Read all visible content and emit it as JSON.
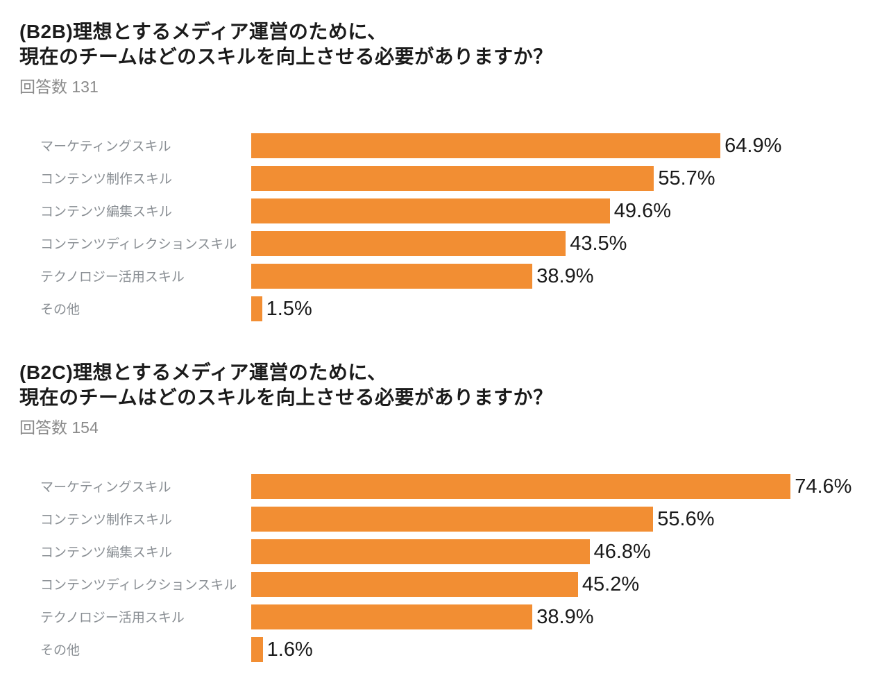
{
  "page": {
    "background": "#ffffff"
  },
  "chart_data": [
    {
      "type": "bar",
      "orientation": "horizontal",
      "title_line1": "(B2B)理想とするメディア運営のために、",
      "title_line2": "現在のチームはどのスキルを向上させる必要がありますか？",
      "responses_label": "回答数",
      "responses_count": "131",
      "categories": [
        "マーケティングスキル",
        "コンテンツ制作スキル",
        "コンテンツ編集スキル",
        "コンテンツディレクションスキル",
        "テクノロジー活用スキル",
        "その他"
      ],
      "values": [
        64.9,
        55.7,
        49.6,
        43.5,
        38.9,
        1.5
      ],
      "value_labels": [
        "64.9%",
        "55.7%",
        "49.6%",
        "43.5%",
        "38.9%",
        "1.5%"
      ],
      "bar_color": "#F28E33",
      "label_color": "#8a8f94",
      "value_color": "#1a1a1a",
      "xlim": [
        0,
        86
      ],
      "grid": false,
      "legend": "none"
    },
    {
      "type": "bar",
      "orientation": "horizontal",
      "title_line1": "(B2C)理想とするメディア運営のために、",
      "title_line2": "現在のチームはどのスキルを向上させる必要がありますか？",
      "responses_label": "回答数",
      "responses_count": "154",
      "categories": [
        "マーケティングスキル",
        "コンテンツ制作スキル",
        "コンテンツ編集スキル",
        "コンテンツディレクションスキル",
        "テクノロジー活用スキル",
        "その他"
      ],
      "values": [
        74.6,
        55.6,
        46.8,
        45.2,
        38.9,
        1.6
      ],
      "value_labels": [
        "74.6%",
        "55.6%",
        "46.8%",
        "45.2%",
        "38.9%",
        "1.6%"
      ],
      "bar_color": "#F28E33",
      "label_color": "#8a8f94",
      "value_color": "#1a1a1a",
      "xlim": [
        0,
        86
      ],
      "grid": false,
      "legend": "none"
    }
  ]
}
